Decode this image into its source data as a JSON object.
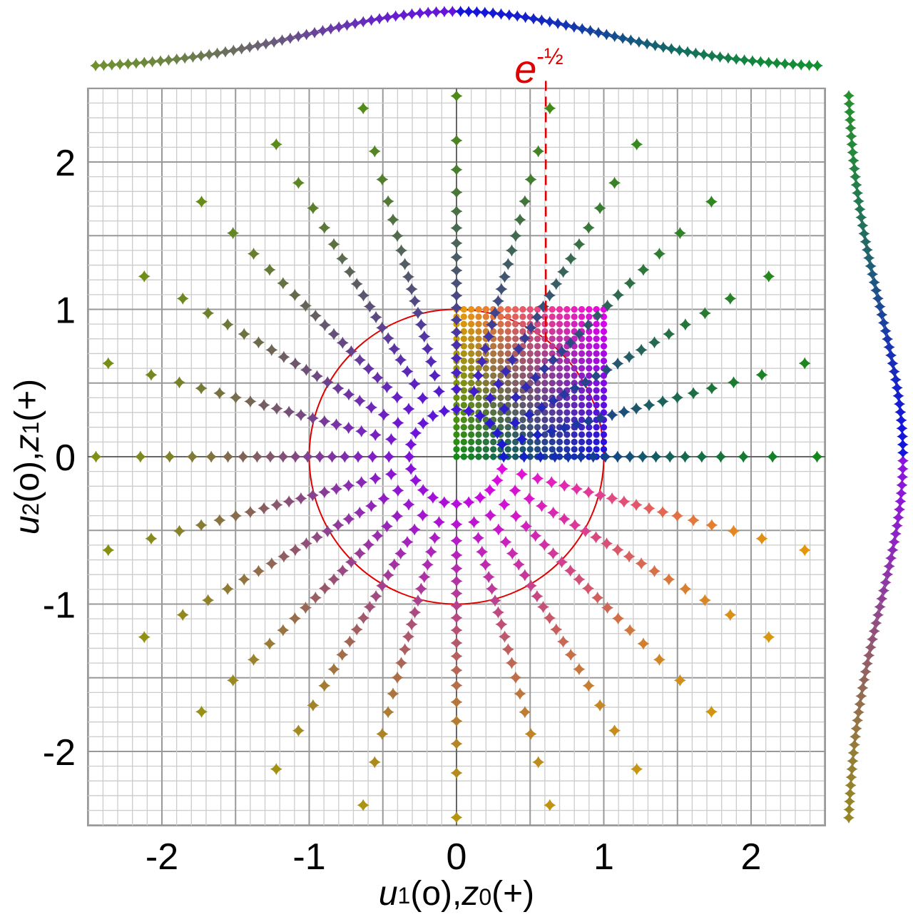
{
  "chart_data": {
    "type": "scatter",
    "title": "",
    "xlim": [
      -2.5,
      2.5
    ],
    "ylim": [
      -2.5,
      2.5
    ],
    "x_ticks": [
      -2,
      -1,
      0,
      1,
      2
    ],
    "y_ticks": [
      -2,
      -1,
      0,
      1,
      2
    ],
    "x_tick_labels": [
      "-2",
      "-1",
      "0",
      "1",
      "2"
    ],
    "y_tick_labels": [
      "-2",
      "-1",
      "0",
      "1",
      "2"
    ],
    "xlabel": {
      "u": "u",
      "u_sub": "1",
      "u_arg": "(o),",
      "z": "z",
      "z_sub": "0",
      "z_arg": "(+)"
    },
    "ylabel": {
      "u": "u",
      "u_sub": "2",
      "u_arg": "(o),",
      "z": "z",
      "z_sub": "1",
      "z_arg": "(+)"
    },
    "grid": true,
    "annotations": [
      {
        "type": "vline",
        "x": 0.6065,
        "y_from": 0.78,
        "y_to": 2.55,
        "style": "dashed",
        "color": "#e00000",
        "label_base": "e",
        "label_sup": "-½"
      }
    ],
    "unit_circle": {
      "radius": 1,
      "color": "#e00000"
    },
    "series": [
      {
        "marker": "circle",
        "description_color": "uniform grid (u1,u2) in [0,1]^2",
        "grid_n": 20,
        "range": [
          0,
          1
        ]
      },
      {
        "marker": "star",
        "description_color": "Box-Muller transformed points z0,z1 along rays",
        "rays": 24,
        "radial_u1": 20
      },
      {
        "marker": "star",
        "description_color": "marginal density of z0 (top)"
      },
      {
        "marker": "star",
        "description_color": "marginal density of z1 (right)"
      }
    ],
    "colors": {
      "axis": "#999999",
      "grid_minor": "#cccccc",
      "grid_major": "#999999",
      "accent": "#e00000"
    }
  }
}
